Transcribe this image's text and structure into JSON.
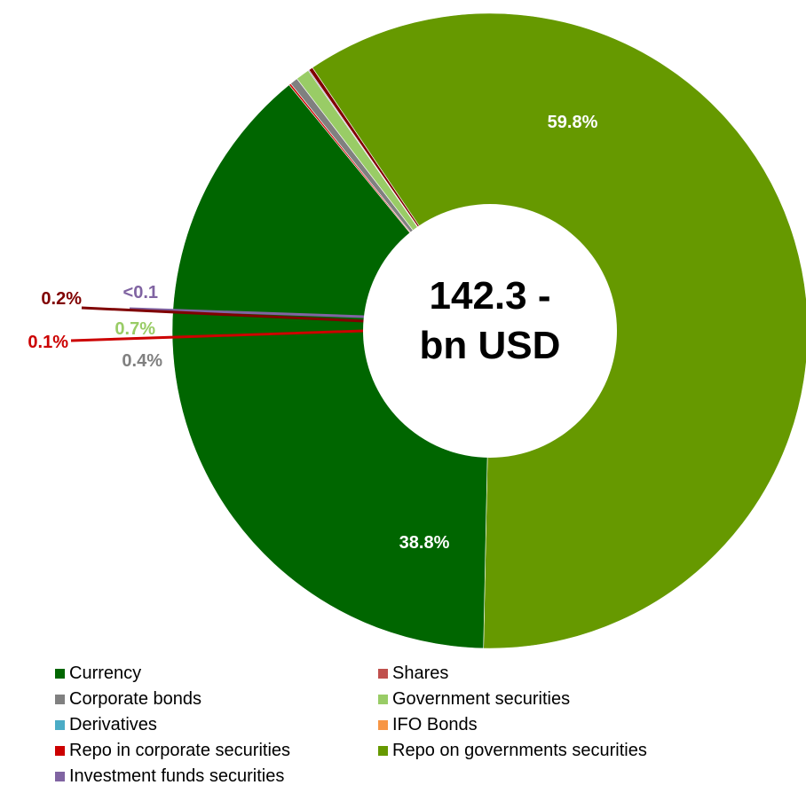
{
  "chart_data": {
    "type": "pie",
    "center_label": [
      "142.3 -",
      "bn USD"
    ],
    "slices": [
      {
        "name": "Repo on governments securities",
        "value": 59.8,
        "label": "59.8%",
        "color": "#669900"
      },
      {
        "name": "Currency",
        "value": 38.8,
        "label": "38.8%",
        "color": "#006600"
      },
      {
        "name": "Repo in corporate securities",
        "value": 0.1,
        "label": "0.1%",
        "color": "#cc0000"
      },
      {
        "name": "Corporate bonds",
        "value": 0.4,
        "label": "0.4%",
        "color": "#808080"
      },
      {
        "name": "Government securities",
        "value": 0.7,
        "label": "0.7%",
        "color": "#99cc66"
      },
      {
        "name": "Investment funds securities",
        "value": 0.05,
        "label": "<0.1",
        "color": "#8064a2"
      },
      {
        "name": "Shares",
        "value": 0.2,
        "label": "0.2%",
        "color": "#800000"
      }
    ],
    "legend": [
      {
        "label": "Currency",
        "color": "#006600"
      },
      {
        "label": "Shares",
        "color": "#c0504d"
      },
      {
        "label": "Corporate bonds",
        "color": "#808080"
      },
      {
        "label": "Government securities",
        "color": "#99cc66"
      },
      {
        "label": "Derivatives",
        "color": "#4bacc6"
      },
      {
        "label": "IFO Bonds",
        "color": "#f79646"
      },
      {
        "label": "Repo in corporate securities",
        "color": "#cc0000"
      },
      {
        "label": "Repo on governments securities",
        "color": "#669900"
      },
      {
        "label": "Investment funds securities",
        "color": "#8064a2"
      }
    ]
  }
}
